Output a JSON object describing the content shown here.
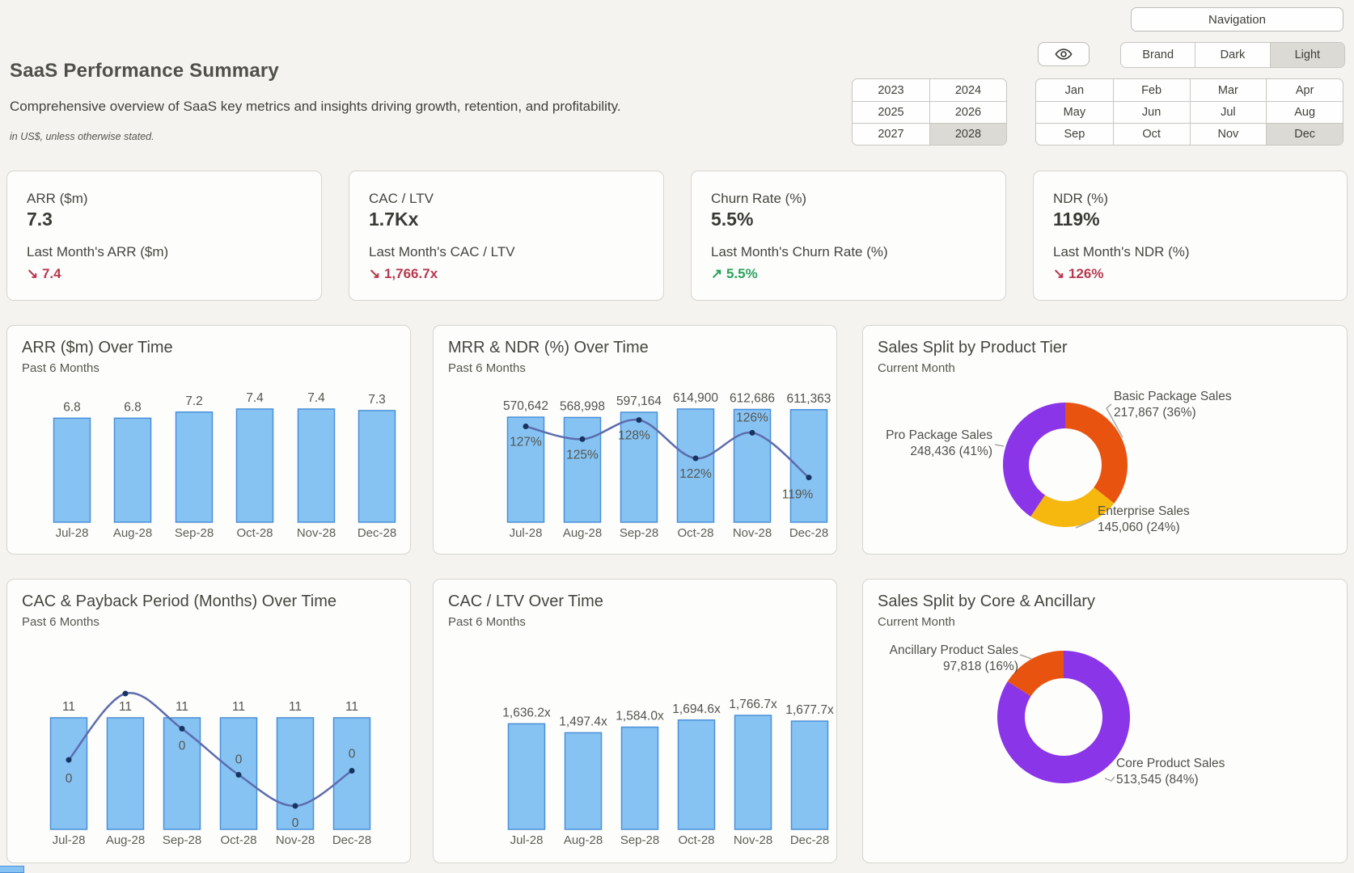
{
  "header": {
    "title": "SaaS Performance Summary",
    "subtitle": "Comprehensive overview of SaaS key metrics and insights driving growth, retention, and profitability.",
    "note": "in US$, unless otherwise stated.",
    "navigation_label": "Navigation",
    "theme_options": [
      "Brand",
      "Dark",
      "Light"
    ],
    "theme_selected": "Light",
    "years": [
      [
        "2023",
        "2024"
      ],
      [
        "2025",
        "2026"
      ],
      [
        "2027",
        "2028"
      ]
    ],
    "year_selected": "2028",
    "months": [
      [
        "Jan",
        "Feb",
        "Mar",
        "Apr"
      ],
      [
        "May",
        "Jun",
        "Jul",
        "Aug"
      ],
      [
        "Sep",
        "Oct",
        "Nov",
        "Dec"
      ]
    ],
    "month_selected": "Dec"
  },
  "colors": {
    "positive": "#2aa25e",
    "negative": "#b8384f",
    "bar_fill": "#86c3f3",
    "bar_stroke": "#4b90d8",
    "line": "#5d6cae",
    "dot": "#16345f",
    "orange": "#e8530f",
    "yellow": "#f6b80e",
    "purple": "#8a35e8"
  },
  "kpis": [
    {
      "label": "ARR ($m)",
      "value": "7.3",
      "sub_label": "Last Month's ARR ($m)",
      "trend_arrow": "↘",
      "trend_value": "7.4",
      "direction": "down"
    },
    {
      "label": "CAC / LTV",
      "value": "1.7Kx",
      "sub_label": "Last Month's CAC / LTV",
      "trend_arrow": "↘",
      "trend_value": "1,766.7x",
      "direction": "down"
    },
    {
      "label": "Churn Rate (%)",
      "value": "5.5%",
      "sub_label": "Last Month's Churn Rate (%)",
      "trend_arrow": "↗",
      "trend_value": "5.5%",
      "direction": "up"
    },
    {
      "label": "NDR (%)",
      "value": "119%",
      "sub_label": "Last Month's NDR (%)",
      "trend_arrow": "↘",
      "trend_value": "126%",
      "direction": "down"
    }
  ],
  "chart_data": [
    {
      "type": "bar",
      "title": "ARR ($m) Over Time",
      "subtitle": "Past 6 Months",
      "categories": [
        "Jul-28",
        "Aug-28",
        "Sep-28",
        "Oct-28",
        "Nov-28",
        "Dec-28"
      ],
      "values": [
        6.8,
        6.8,
        7.2,
        7.4,
        7.4,
        7.3
      ],
      "value_labels": [
        "6.8",
        "6.8",
        "7.2",
        "7.4",
        "7.4",
        "7.3"
      ],
      "ylim": [
        0,
        7.4
      ],
      "grid": false,
      "legend": "none"
    },
    {
      "type": "bar+line",
      "title": "MRR & NDR (%) Over Time",
      "subtitle": "Past 6 Months",
      "categories": [
        "Jul-28",
        "Aug-28",
        "Sep-28",
        "Oct-28",
        "Nov-28",
        "Dec-28"
      ],
      "series": [
        {
          "name": "MRR",
          "type": "bar",
          "values": [
            570642,
            568998,
            597164,
            614900,
            612686,
            611363
          ],
          "labels": [
            "570,642",
            "568,998",
            "597,164",
            "614,900",
            "612,686",
            "611,363"
          ]
        },
        {
          "name": "NDR (%)",
          "type": "line",
          "values": [
            127,
            125,
            128,
            122,
            126,
            119
          ],
          "labels": [
            "127%",
            "125%",
            "128%",
            "122%",
            "126%",
            "119%"
          ]
        }
      ],
      "grid": false,
      "legend": "none"
    },
    {
      "type": "donut",
      "title": "Sales Split by Product Tier",
      "subtitle": "Current Month",
      "slices": [
        {
          "label": "Basic Package Sales",
          "value": 217867,
          "pct": 36,
          "value_label": "217,867 (36%)",
          "color": "#e8530f"
        },
        {
          "label": "Enterprise Sales",
          "value": 145060,
          "pct": 24,
          "value_label": "145,060 (24%)",
          "color": "#f6b80e"
        },
        {
          "label": "Pro Package Sales",
          "value": 248436,
          "pct": 41,
          "value_label": "248,436 (41%)",
          "color": "#8a35e8"
        }
      ],
      "legend": "callout-labels"
    },
    {
      "type": "bar+line",
      "title": "CAC & Payback Period (Months) Over Time",
      "subtitle": "Past 6 Months",
      "categories": [
        "Jul-28",
        "Aug-28",
        "Sep-28",
        "Oct-28",
        "Nov-28",
        "Dec-28"
      ],
      "series": [
        {
          "name": "CAC",
          "type": "bar",
          "values": [
            11,
            11,
            11,
            11,
            11,
            11
          ],
          "labels": [
            "11",
            "11",
            "11",
            "11",
            "11",
            "11"
          ]
        },
        {
          "name": "Payback Period (Months)",
          "type": "line",
          "values": [
            0,
            0,
            0,
            0,
            0,
            0
          ],
          "labels": [
            "0",
            "0",
            "0",
            "0",
            "0",
            "0"
          ],
          "curve_profile_estimate": [
            0.51,
            1.0,
            0.74,
            0.4,
            0.17,
            0.43
          ]
        }
      ],
      "grid": false,
      "legend": "none"
    },
    {
      "type": "bar",
      "title": "CAC / LTV Over Time",
      "subtitle": "Past 6 Months",
      "categories": [
        "Jul-28",
        "Aug-28",
        "Sep-28",
        "Oct-28",
        "Nov-28",
        "Dec-28"
      ],
      "values": [
        1636.2,
        1497.4,
        1584.0,
        1694.6,
        1766.7,
        1677.7
      ],
      "value_labels": [
        "1,636.2x",
        "1,497.4x",
        "1,584.0x",
        "1,694.6x",
        "1,766.7x",
        "1,677.7x"
      ],
      "ylim": [
        0,
        1766.7
      ],
      "grid": false,
      "legend": "none"
    },
    {
      "type": "donut",
      "title": "Sales Split by Core & Ancillary",
      "subtitle": "Current Month",
      "slices": [
        {
          "label": "Core Product Sales",
          "value": 513545,
          "pct": 84,
          "value_label": "513,545 (84%)",
          "color": "#8a35e8"
        },
        {
          "label": "Ancillary Product Sales",
          "value": 97818,
          "pct": 16,
          "value_label": "97,818 (16%)",
          "color": "#e8530f"
        }
      ],
      "legend": "callout-labels"
    }
  ]
}
